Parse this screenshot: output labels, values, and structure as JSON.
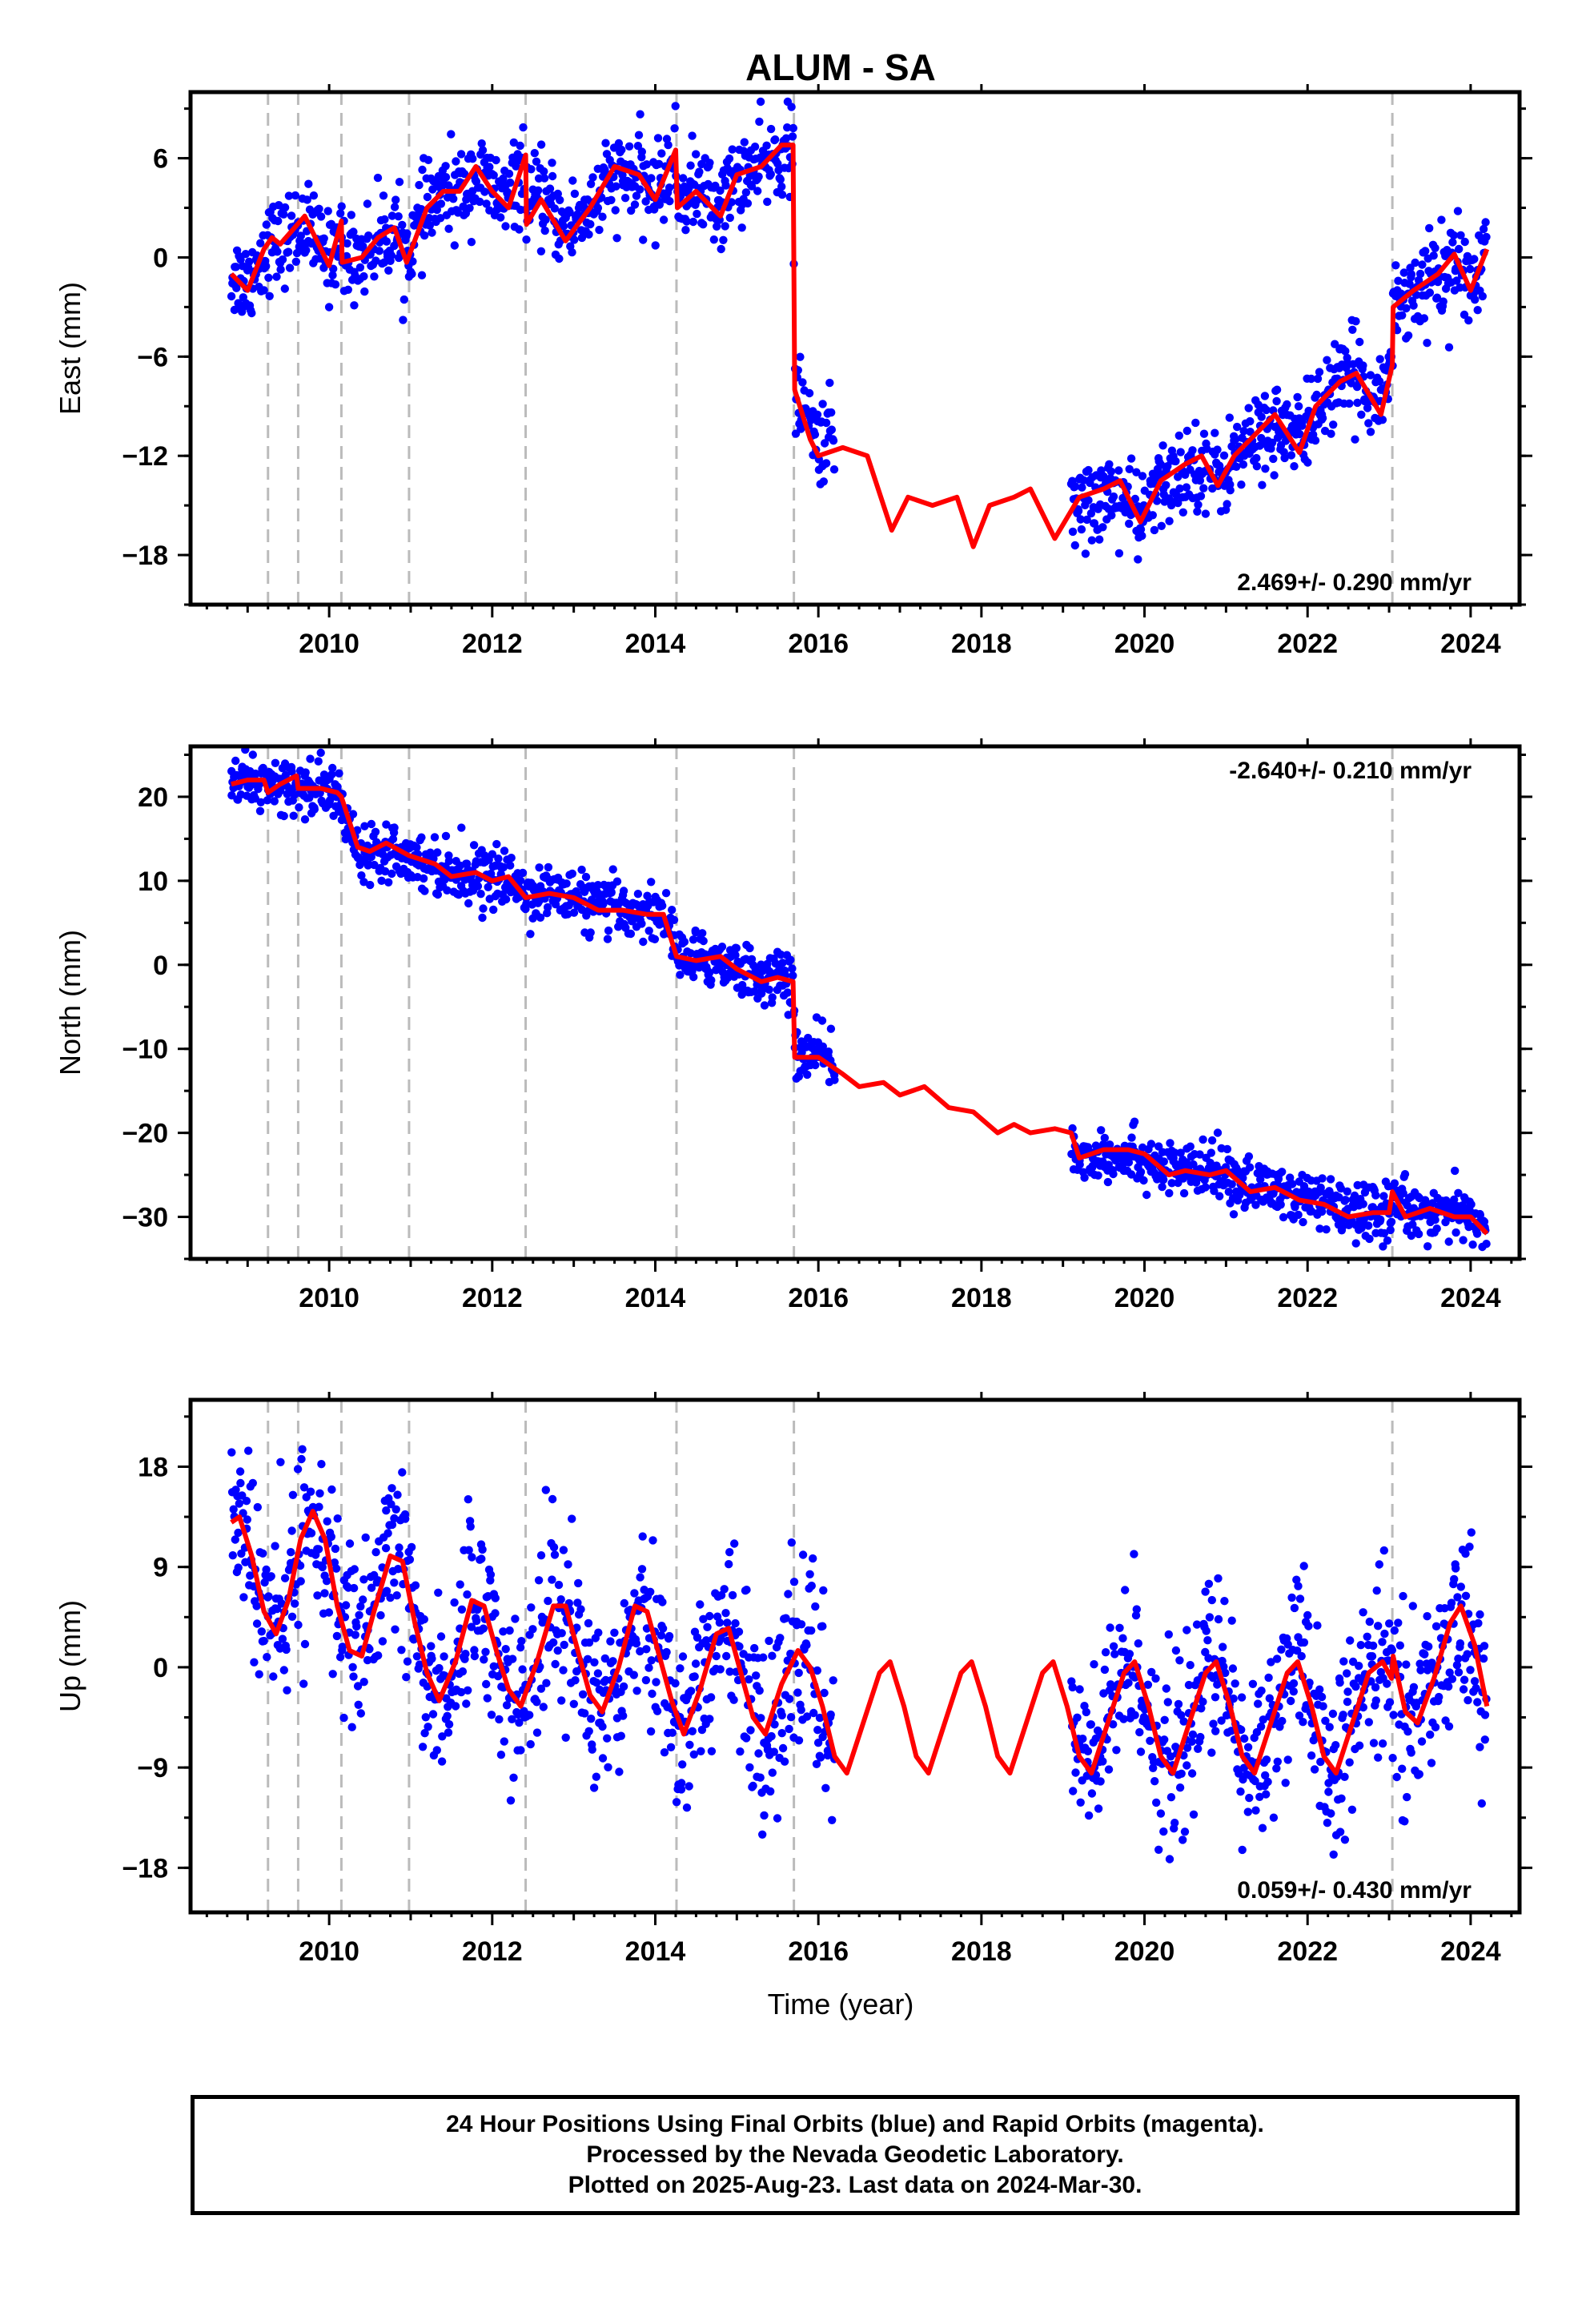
{
  "title": "ALUM - SA",
  "xlabel": "Time (year)",
  "footer": {
    "line1": "24 Hour Positions Using Final Orbits (blue) and Rapid Orbits (magenta).",
    "line2": "Processed by the Nevada Geodetic Laboratory.",
    "line3": "Plotted on 2025-Aug-23. Last data on 2024-Mar-30."
  },
  "colors": {
    "data": "#0000ff",
    "model": "#ff0000",
    "event_lines": "#bbbbbb",
    "axes": "#000000"
  },
  "chart_data": [
    {
      "type": "scatter",
      "panel": "east",
      "ylabel": "East (mm)",
      "velocity": "2.469+/- 0.290 mm/yr",
      "velocity_position": "bottom-right",
      "xlim": [
        2008.3,
        2024.6
      ],
      "ylim": [
        -21,
        10
      ],
      "xticks": [
        2010,
        2012,
        2014,
        2016,
        2018,
        2020,
        2022,
        2024
      ],
      "yticks": [
        -18,
        -12,
        -6,
        0,
        6
      ],
      "ytick_labels": [
        "−18",
        "−12",
        "−6",
        "0",
        "6"
      ],
      "event_lines_x": [
        2009.25,
        2009.62,
        2010.15,
        2010.98,
        2012.41,
        2014.26,
        2015.7,
        2023.04
      ],
      "data_gap": [
        2016.2,
        2019.1
      ],
      "model": [
        [
          2008.8,
          -1.0
        ],
        [
          2009.0,
          -2.0
        ],
        [
          2009.2,
          0.5
        ],
        [
          2009.3,
          1.2
        ],
        [
          2009.4,
          0.8
        ],
        [
          2009.7,
          2.5
        ],
        [
          2009.9,
          0.5
        ],
        [
          2010.0,
          -0.5
        ],
        [
          2010.15,
          2.2
        ],
        [
          2010.16,
          -0.3
        ],
        [
          2010.4,
          0.0
        ],
        [
          2010.6,
          1.2
        ],
        [
          2010.8,
          1.8
        ],
        [
          2010.95,
          -0.3
        ],
        [
          2011.2,
          3.0
        ],
        [
          2011.4,
          4.0
        ],
        [
          2011.6,
          4.0
        ],
        [
          2011.8,
          5.5
        ],
        [
          2012.0,
          4.0
        ],
        [
          2012.2,
          3.0
        ],
        [
          2012.41,
          6.2
        ],
        [
          2012.42,
          2.0
        ],
        [
          2012.6,
          3.5
        ],
        [
          2012.9,
          1.0
        ],
        [
          2013.2,
          3.0
        ],
        [
          2013.5,
          5.5
        ],
        [
          2013.8,
          5.0
        ],
        [
          2014.0,
          3.5
        ],
        [
          2014.25,
          6.5
        ],
        [
          2014.27,
          3.0
        ],
        [
          2014.5,
          4.0
        ],
        [
          2014.8,
          2.5
        ],
        [
          2015.0,
          5.0
        ],
        [
          2015.3,
          5.5
        ],
        [
          2015.55,
          6.8
        ],
        [
          2015.69,
          6.8
        ],
        [
          2015.71,
          -8.0
        ],
        [
          2015.9,
          -11.0
        ],
        [
          2016.0,
          -12.0
        ],
        [
          2016.3,
          -11.5
        ],
        [
          2016.6,
          -12.0
        ],
        [
          2016.9,
          -16.5
        ],
        [
          2017.1,
          -14.5
        ],
        [
          2017.4,
          -15.0
        ],
        [
          2017.7,
          -14.5
        ],
        [
          2017.9,
          -17.5
        ],
        [
          2018.1,
          -15.0
        ],
        [
          2018.4,
          -14.5
        ],
        [
          2018.6,
          -14.0
        ],
        [
          2018.9,
          -17.0
        ],
        [
          2019.2,
          -14.5
        ],
        [
          2019.5,
          -14.0
        ],
        [
          2019.7,
          -13.5
        ],
        [
          2019.95,
          -16.0
        ],
        [
          2020.2,
          -13.5
        ],
        [
          2020.5,
          -12.5
        ],
        [
          2020.7,
          -12.0
        ],
        [
          2020.9,
          -13.8
        ],
        [
          2021.1,
          -12.0
        ],
        [
          2021.4,
          -10.5
        ],
        [
          2021.6,
          -9.5
        ],
        [
          2021.9,
          -11.8
        ],
        [
          2022.1,
          -9.0
        ],
        [
          2022.4,
          -7.5
        ],
        [
          2022.6,
          -7.0
        ],
        [
          2022.9,
          -9.5
        ],
        [
          2023.04,
          -6.5
        ],
        [
          2023.05,
          -3.0
        ],
        [
          2023.3,
          -2.0
        ],
        [
          2023.6,
          -1.0
        ],
        [
          2023.8,
          0.2
        ],
        [
          2024.0,
          -2.0
        ],
        [
          2024.2,
          0.5
        ]
      ],
      "trend": [
        [
          2008.8,
          -1.0
        ],
        [
          2009.5,
          1.0
        ],
        [
          2010.5,
          0.5
        ],
        [
          2011.5,
          3.5
        ],
        [
          2012.4,
          4.5
        ],
        [
          2013.3,
          3.0
        ],
        [
          2014.2,
          5.0
        ],
        [
          2015.0,
          4.5
        ],
        [
          2015.7,
          5.5
        ],
        [
          2015.72,
          -8.5
        ],
        [
          2016.3,
          -9.0
        ],
        [
          2019.3,
          -15.5
        ],
        [
          2019.9,
          -16.0
        ],
        [
          2020.5,
          -13.5
        ],
        [
          2021.5,
          -11.5
        ],
        [
          2022.5,
          -7.5
        ],
        [
          2023.0,
          -6.0
        ],
        [
          2023.05,
          -2.0
        ],
        [
          2024.2,
          -1.0
        ]
      ],
      "scatter_mm": 1.3
    },
    {
      "type": "scatter",
      "panel": "north",
      "ylabel": "North (mm)",
      "velocity": "-2.640+/- 0.210 mm/yr",
      "velocity_position": "top-right",
      "xlim": [
        2008.3,
        2024.6
      ],
      "ylim": [
        -35,
        26
      ],
      "xticks": [
        2010,
        2012,
        2014,
        2016,
        2018,
        2020,
        2022,
        2024
      ],
      "yticks": [
        -30,
        -20,
        -10,
        0,
        10,
        20
      ],
      "ytick_labels": [
        "−30",
        "−20",
        "−10",
        "0",
        "10",
        "20"
      ],
      "event_lines_x": [
        2009.25,
        2009.62,
        2010.15,
        2010.98,
        2012.41,
        2014.26,
        2015.7,
        2023.04
      ],
      "data_gap": [
        2016.2,
        2019.1
      ],
      "model": [
        [
          2008.8,
          21.5
        ],
        [
          2009.0,
          22.0
        ],
        [
          2009.2,
          22.0
        ],
        [
          2009.25,
          20.5
        ],
        [
          2009.4,
          21.5
        ],
        [
          2009.6,
          22.5
        ],
        [
          2009.62,
          21.0
        ],
        [
          2009.9,
          21.0
        ],
        [
          2010.1,
          20.5
        ],
        [
          2010.15,
          20.0
        ],
        [
          2010.35,
          14.0
        ],
        [
          2010.5,
          13.5
        ],
        [
          2010.7,
          14.5
        ],
        [
          2010.98,
          13.0
        ],
        [
          2011.3,
          12.0
        ],
        [
          2011.5,
          10.5
        ],
        [
          2011.8,
          11.0
        ],
        [
          2012.0,
          10.0
        ],
        [
          2012.2,
          10.5
        ],
        [
          2012.41,
          8.0
        ],
        [
          2012.7,
          8.5
        ],
        [
          2013.0,
          8.0
        ],
        [
          2013.3,
          6.5
        ],
        [
          2013.6,
          6.5
        ],
        [
          2013.9,
          6.0
        ],
        [
          2014.1,
          6.0
        ],
        [
          2014.26,
          1.0
        ],
        [
          2014.5,
          0.5
        ],
        [
          2014.8,
          1.0
        ],
        [
          2015.0,
          -0.5
        ],
        [
          2015.3,
          -2.0
        ],
        [
          2015.5,
          -1.5
        ],
        [
          2015.69,
          -2.0
        ],
        [
          2015.71,
          -11.0
        ],
        [
          2016.0,
          -11.0
        ],
        [
          2016.3,
          -13.0
        ],
        [
          2016.5,
          -14.5
        ],
        [
          2016.8,
          -14.0
        ],
        [
          2017.0,
          -15.5
        ],
        [
          2017.3,
          -14.5
        ],
        [
          2017.6,
          -17.0
        ],
        [
          2017.9,
          -17.5
        ],
        [
          2018.2,
          -20.0
        ],
        [
          2018.4,
          -19.0
        ],
        [
          2018.6,
          -20.0
        ],
        [
          2018.9,
          -19.5
        ],
        [
          2019.1,
          -20.0
        ],
        [
          2019.2,
          -23.0
        ],
        [
          2019.5,
          -22.0
        ],
        [
          2019.8,
          -22.0
        ],
        [
          2020.0,
          -22.5
        ],
        [
          2020.3,
          -25.0
        ],
        [
          2020.5,
          -24.5
        ],
        [
          2020.8,
          -25.0
        ],
        [
          2021.0,
          -24.5
        ],
        [
          2021.3,
          -27.0
        ],
        [
          2021.6,
          -26.5
        ],
        [
          2021.9,
          -28.0
        ],
        [
          2022.2,
          -28.5
        ],
        [
          2022.5,
          -30.0
        ],
        [
          2022.8,
          -29.5
        ],
        [
          2023.0,
          -29.5
        ],
        [
          2023.04,
          -27.0
        ],
        [
          2023.2,
          -30.0
        ],
        [
          2023.5,
          -29.0
        ],
        [
          2023.8,
          -30.0
        ],
        [
          2024.0,
          -30.0
        ],
        [
          2024.2,
          -32.0
        ]
      ],
      "trend": [
        [
          2008.8,
          21.5
        ],
        [
          2010.1,
          20.5
        ],
        [
          2010.2,
          14.5
        ],
        [
          2012.4,
          9.5
        ],
        [
          2014.25,
          6.0
        ],
        [
          2014.27,
          1.0
        ],
        [
          2015.69,
          -1.5
        ],
        [
          2015.71,
          -10.0
        ],
        [
          2016.1,
          -10.5
        ],
        [
          2019.2,
          -23.0
        ],
        [
          2021.0,
          -24.8
        ],
        [
          2022.0,
          -28.0
        ],
        [
          2023.0,
          -29.5
        ],
        [
          2023.05,
          -28.0
        ],
        [
          2024.2,
          -30.0
        ]
      ],
      "scatter_mm": 1.6
    },
    {
      "type": "scatter",
      "panel": "up",
      "ylabel": "Up (mm)",
      "velocity": "0.059+/- 0.430 mm/yr",
      "velocity_position": "bottom-right",
      "xlim": [
        2008.3,
        2024.6
      ],
      "ylim": [
        -22,
        24
      ],
      "xticks": [
        2010,
        2012,
        2014,
        2016,
        2018,
        2020,
        2022,
        2024
      ],
      "yticks": [
        -18,
        -9,
        0,
        9,
        18
      ],
      "ytick_labels": [
        "−18",
        "−9",
        "0",
        "9",
        "18"
      ],
      "event_lines_x": [
        2009.25,
        2009.62,
        2010.15,
        2010.98,
        2012.41,
        2014.26,
        2015.7,
        2023.04
      ],
      "data_gap": [
        2016.2,
        2019.1
      ],
      "model": [
        [
          2008.8,
          13.0
        ],
        [
          2008.9,
          13.5
        ],
        [
          2009.05,
          10.0
        ],
        [
          2009.2,
          5.0
        ],
        [
          2009.35,
          3.0
        ],
        [
          2009.5,
          6.0
        ],
        [
          2009.65,
          11.5
        ],
        [
          2009.8,
          14.0
        ],
        [
          2009.95,
          11.5
        ],
        [
          2010.1,
          5.5
        ],
        [
          2010.25,
          1.5
        ],
        [
          2010.4,
          1.0
        ],
        [
          2010.55,
          5.0
        ],
        [
          2010.75,
          10.0
        ],
        [
          2010.9,
          9.5
        ],
        [
          2011.05,
          4.0
        ],
        [
          2011.2,
          -0.5
        ],
        [
          2011.35,
          -3.0
        ],
        [
          2011.55,
          0.5
        ],
        [
          2011.75,
          6.0
        ],
        [
          2011.9,
          5.5
        ],
        [
          2012.05,
          1.5
        ],
        [
          2012.2,
          -2.0
        ],
        [
          2012.35,
          -3.5
        ],
        [
          2012.55,
          0.5
        ],
        [
          2012.75,
          5.5
        ],
        [
          2012.9,
          5.5
        ],
        [
          2013.05,
          1.5
        ],
        [
          2013.2,
          -2.5
        ],
        [
          2013.35,
          -4.0
        ],
        [
          2013.55,
          0.0
        ],
        [
          2013.75,
          5.5
        ],
        [
          2013.9,
          5.0
        ],
        [
          2014.05,
          1.0
        ],
        [
          2014.2,
          -3.0
        ],
        [
          2014.35,
          -6.0
        ],
        [
          2014.55,
          -2.0
        ],
        [
          2014.75,
          3.0
        ],
        [
          2014.9,
          3.5
        ],
        [
          2015.05,
          -0.5
        ],
        [
          2015.2,
          -4.5
        ],
        [
          2015.35,
          -6.0
        ],
        [
          2015.55,
          -1.5
        ],
        [
          2015.75,
          1.5
        ],
        [
          2015.9,
          0.0
        ],
        [
          2016.05,
          -3.5
        ],
        [
          2016.2,
          -8.0
        ],
        [
          2016.35,
          -9.5
        ],
        [
          2016.55,
          -5.0
        ],
        [
          2016.75,
          -0.5
        ],
        [
          2016.88,
          0.5
        ],
        [
          2017.05,
          -3.5
        ],
        [
          2017.2,
          -8.0
        ],
        [
          2017.35,
          -9.5
        ],
        [
          2017.55,
          -5.0
        ],
        [
          2017.75,
          -0.5
        ],
        [
          2017.88,
          0.5
        ],
        [
          2018.05,
          -3.5
        ],
        [
          2018.2,
          -8.0
        ],
        [
          2018.35,
          -9.5
        ],
        [
          2018.55,
          -5.0
        ],
        [
          2018.75,
          -0.5
        ],
        [
          2018.88,
          0.5
        ],
        [
          2019.05,
          -3.5
        ],
        [
          2019.2,
          -8.0
        ],
        [
          2019.35,
          -9.5
        ],
        [
          2019.55,
          -5.0
        ],
        [
          2019.75,
          -0.5
        ],
        [
          2019.88,
          0.5
        ],
        [
          2020.05,
          -3.5
        ],
        [
          2020.2,
          -8.0
        ],
        [
          2020.35,
          -9.5
        ],
        [
          2020.55,
          -5.0
        ],
        [
          2020.75,
          -0.5
        ],
        [
          2020.88,
          0.5
        ],
        [
          2021.05,
          -3.5
        ],
        [
          2021.2,
          -8.0
        ],
        [
          2021.35,
          -9.5
        ],
        [
          2021.55,
          -5.0
        ],
        [
          2021.75,
          -0.5
        ],
        [
          2021.88,
          0.5
        ],
        [
          2022.05,
          -3.5
        ],
        [
          2022.2,
          -8.0
        ],
        [
          2022.35,
          -9.5
        ],
        [
          2022.55,
          -5.0
        ],
        [
          2022.75,
          -0.5
        ],
        [
          2022.92,
          0.5
        ],
        [
          2023.03,
          -1.0
        ],
        [
          2023.05,
          1.0
        ],
        [
          2023.2,
          -4.0
        ],
        [
          2023.35,
          -5.0
        ],
        [
          2023.55,
          -1.0
        ],
        [
          2023.75,
          4.0
        ],
        [
          2023.88,
          5.5
        ],
        [
          2024.05,
          2.0
        ],
        [
          2024.2,
          -3.5
        ]
      ],
      "trend": [
        [
          2008.8,
          9.0
        ],
        [
          2010.0,
          6.0
        ],
        [
          2011.0,
          2.5
        ],
        [
          2012.0,
          1.5
        ],
        [
          2013.0,
          1.0
        ],
        [
          2014.0,
          0.5
        ],
        [
          2015.0,
          -0.5
        ],
        [
          2016.0,
          -1.5
        ],
        [
          2019.2,
          -11.0
        ],
        [
          2019.6,
          -7.0
        ],
        [
          2020.3,
          -4.0
        ],
        [
          2021.3,
          -6.5
        ],
        [
          2022.3,
          -5.0
        ],
        [
          2023.0,
          -2.0
        ],
        [
          2024.2,
          0.0
        ]
      ],
      "scatter_mm": 4.0
    }
  ]
}
